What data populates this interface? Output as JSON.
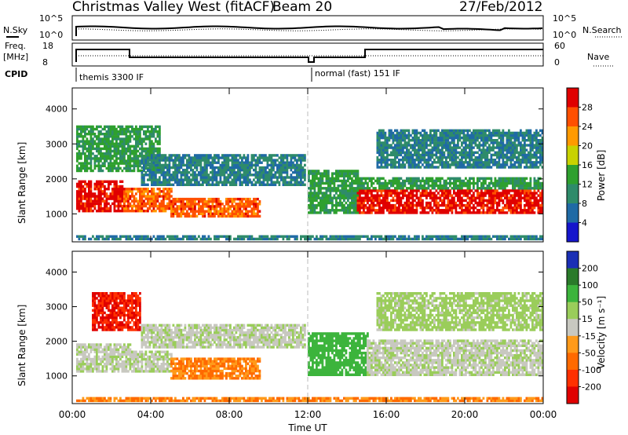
{
  "title": "Christmas Valley West (fitACF)",
  "beam": "Beam 20",
  "date": "27/Feb/2012",
  "top_panels": {
    "nsky_label": "N.Sky",
    "nsearch_label": "N.Search",
    "noise_ticks": [
      "10^5",
      "10^0"
    ],
    "freq_label_1": "Freq.",
    "freq_label_2": "[MHz]",
    "freq_ticks": [
      "18",
      "8"
    ],
    "nave_label": "Nave",
    "nave_ticks": [
      "60",
      "0"
    ],
    "cpid_label": "CPID",
    "cpid_segments": [
      "themis 3300 IF",
      "normal (fast) 151 IF"
    ]
  },
  "chart_data": [
    {
      "type": "heatmap",
      "name": "power-panel",
      "ylabel": "Slant Range [km]",
      "ylim": [
        200,
        4600
      ],
      "yticks": [
        1000,
        2000,
        3000,
        4000
      ],
      "xlim": [
        0,
        24
      ],
      "colorbar": {
        "label": "Power [dB]",
        "ticks": [
          "28",
          "24",
          "20",
          "16",
          "12",
          "8",
          "4"
        ],
        "colors": [
          "#e00000",
          "#ff5000",
          "#ff9a00",
          "#c8d200",
          "#2ea02e",
          "#2e8b6a",
          "#1f6aa5",
          "#1515cc"
        ]
      },
      "features": [
        {
          "t_start": 0.2,
          "t_end": 2.6,
          "range_start": 1050,
          "range_end": 1900,
          "level": 28
        },
        {
          "t_start": 2.6,
          "t_end": 5.0,
          "range_start": 1050,
          "range_end": 1700,
          "level": 24
        },
        {
          "t_start": 5.0,
          "t_end": 9.5,
          "range_start": 900,
          "range_end": 1400,
          "level": 24
        },
        {
          "t_start": 0.2,
          "t_end": 4.5,
          "range_start": 2200,
          "range_end": 3500,
          "level": 12
        },
        {
          "t_start": 3.5,
          "t_end": 11.8,
          "range_start": 1800,
          "range_end": 2700,
          "level": 8
        },
        {
          "t_start": 12.0,
          "t_end": 14.5,
          "range_start": 1000,
          "range_end": 2200,
          "level": 12
        },
        {
          "t_start": 14.5,
          "t_end": 24.0,
          "range_start": 1000,
          "range_end": 1700,
          "level": 28
        },
        {
          "t_start": 14.5,
          "t_end": 24.0,
          "range_start": 1700,
          "range_end": 2000,
          "level": 12
        },
        {
          "t_start": 15.5,
          "t_end": 24.0,
          "range_start": 2300,
          "range_end": 3400,
          "level": 8
        },
        {
          "t_start": 0.2,
          "t_end": 24.0,
          "range_start": 250,
          "range_end": 380,
          "level": 8
        }
      ]
    },
    {
      "type": "heatmap",
      "name": "velocity-panel",
      "ylabel": "Slant Range [km]",
      "ylim": [
        200,
        4600
      ],
      "yticks": [
        1000,
        2000,
        3000,
        4000
      ],
      "xlim": [
        0,
        24
      ],
      "xticks": [
        "00:00",
        "04:00",
        "08:00",
        "12:00",
        "16:00",
        "20:00",
        "00:00"
      ],
      "xlabel": "Time UT",
      "colorbar": {
        "label": "Velocity [m s⁻¹]",
        "ticks": [
          "200",
          "100",
          "50",
          "15",
          "-15",
          "-50",
          "-100",
          "-200"
        ],
        "colors": [
          "#1a2fb5",
          "#2a7a2a",
          "#3cb43c",
          "#9acd5a",
          "#c8c8c0",
          "#ff9a1a",
          "#ff6a00",
          "#ff3000",
          "#e00000"
        ]
      },
      "features": [
        {
          "t_start": 0.2,
          "t_end": 3.0,
          "range_start": 1100,
          "range_end": 1900,
          "level": 0
        },
        {
          "t_start": 3.0,
          "t_end": 5.0,
          "range_start": 1100,
          "range_end": 1700,
          "level": 0
        },
        {
          "t_start": 5.0,
          "t_end": 9.5,
          "range_start": 900,
          "range_end": 1500,
          "level": -50
        },
        {
          "t_start": 1.0,
          "t_end": 3.5,
          "range_start": 2300,
          "range_end": 3400,
          "level": -200
        },
        {
          "t_start": 3.5,
          "t_end": 11.8,
          "range_start": 1800,
          "range_end": 2500,
          "level": 0
        },
        {
          "t_start": 12.0,
          "t_end": 15.0,
          "range_start": 1000,
          "range_end": 2200,
          "level": 50
        },
        {
          "t_start": 15.0,
          "t_end": 24.0,
          "range_start": 1000,
          "range_end": 2000,
          "level": 0
        },
        {
          "t_start": 15.5,
          "t_end": 24.0,
          "range_start": 2300,
          "range_end": 3400,
          "level": 15
        },
        {
          "t_start": 0.2,
          "t_end": 24.0,
          "range_start": 250,
          "range_end": 380,
          "level": -50
        }
      ]
    }
  ]
}
